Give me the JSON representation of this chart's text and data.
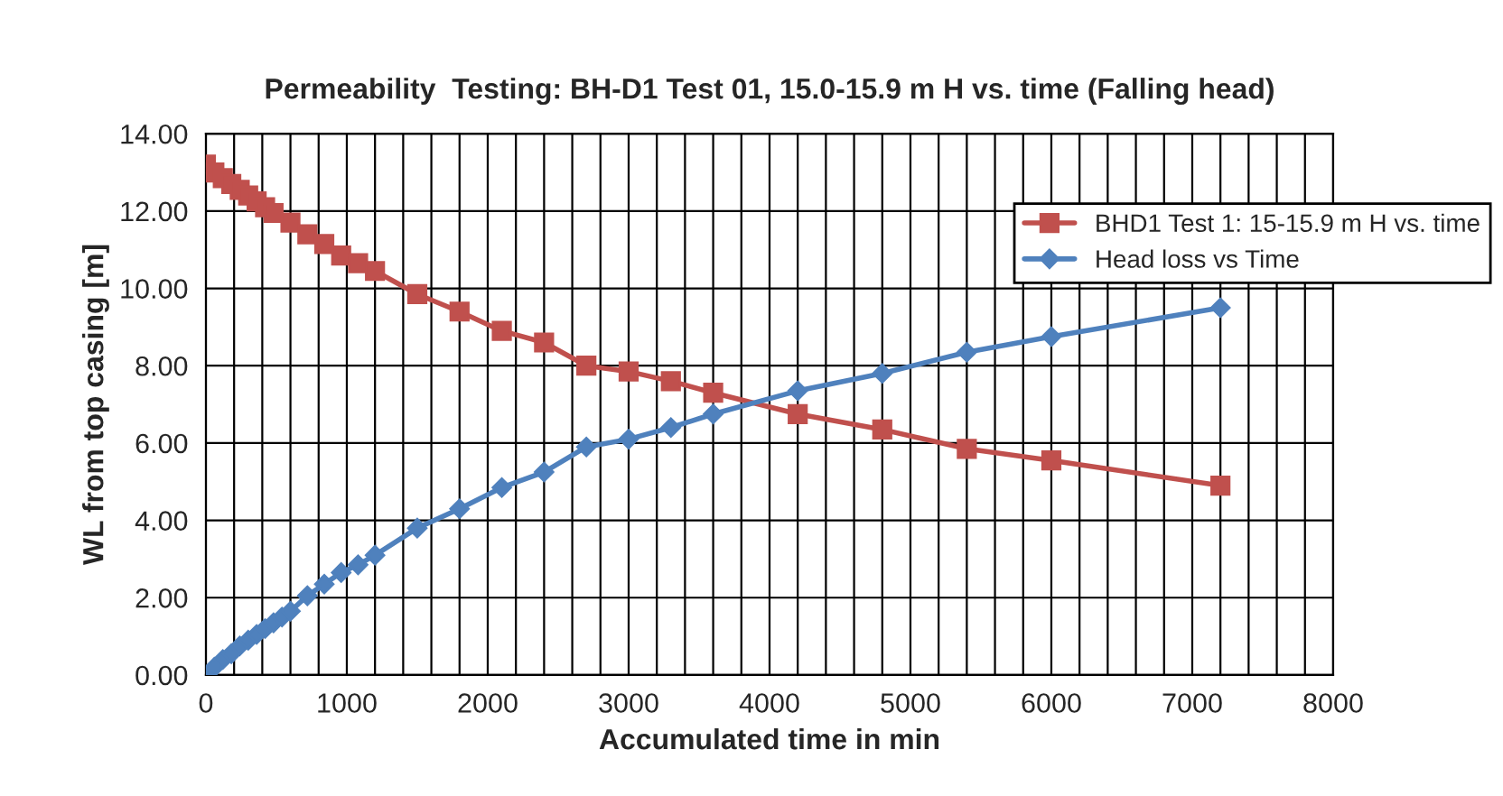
{
  "chart_data": {
    "type": "line",
    "title": "Permeability  Testing: BH-D1 Test 01, 15.0-15.9 m H vs. time (Falling head)",
    "xlabel": "Accumulated time in min",
    "ylabel": "WL from top casing [m]",
    "series": [
      {
        "name": "BHD1 Test 1: 15-15.9 m H vs. time",
        "color": "#c0504d",
        "marker": "square",
        "x": [
          0,
          60,
          120,
          180,
          240,
          300,
          360,
          420,
          480,
          600,
          720,
          840,
          960,
          1080,
          1200,
          1500,
          1800,
          2100,
          2400,
          2700,
          3000,
          3300,
          3600,
          4200,
          4800,
          5400,
          6000,
          7200
        ],
        "values": [
          13.2,
          13.0,
          12.85,
          12.7,
          12.55,
          12.4,
          12.25,
          12.1,
          11.95,
          11.7,
          11.4,
          11.15,
          10.85,
          10.65,
          10.45,
          9.85,
          9.4,
          8.9,
          8.6,
          8.0,
          7.85,
          7.6,
          7.3,
          6.75,
          6.35,
          5.85,
          5.55,
          4.9
        ]
      },
      {
        "name": "Head loss vs Time",
        "color": "#4f81bd",
        "marker": "diamond",
        "x": [
          0,
          60,
          120,
          180,
          240,
          300,
          360,
          420,
          480,
          540,
          600,
          720,
          840,
          960,
          1080,
          1200,
          1500,
          1800,
          2100,
          2400,
          2700,
          3000,
          3300,
          3600,
          4200,
          4800,
          5400,
          6000,
          7200
        ],
        "values": [
          0,
          0.2,
          0.4,
          0.55,
          0.75,
          0.9,
          1.05,
          1.2,
          1.35,
          1.5,
          1.65,
          2.05,
          2.35,
          2.65,
          2.85,
          3.1,
          3.8,
          4.3,
          4.85,
          5.25,
          5.9,
          6.1,
          6.4,
          6.75,
          7.35,
          7.8,
          8.35,
          8.75,
          9.5
        ]
      }
    ],
    "xlim": [
      0,
      8000
    ],
    "xticks": [
      0,
      1000,
      2000,
      3000,
      4000,
      5000,
      6000,
      7000,
      8000
    ],
    "ylim": [
      0,
      14
    ],
    "yticks": [
      {
        "value": 0,
        "label": "0.00"
      },
      {
        "value": 2,
        "label": "2.00"
      },
      {
        "value": 4,
        "label": "4.00"
      },
      {
        "value": 6,
        "label": "6.00"
      },
      {
        "value": 8,
        "label": "8.00"
      },
      {
        "value": 10,
        "label": "10.00"
      },
      {
        "value": 12,
        "label": "12.00"
      },
      {
        "value": 14,
        "label": "14.00"
      }
    ],
    "grid": true,
    "legend": "top right",
    "line_style": "solid"
  }
}
